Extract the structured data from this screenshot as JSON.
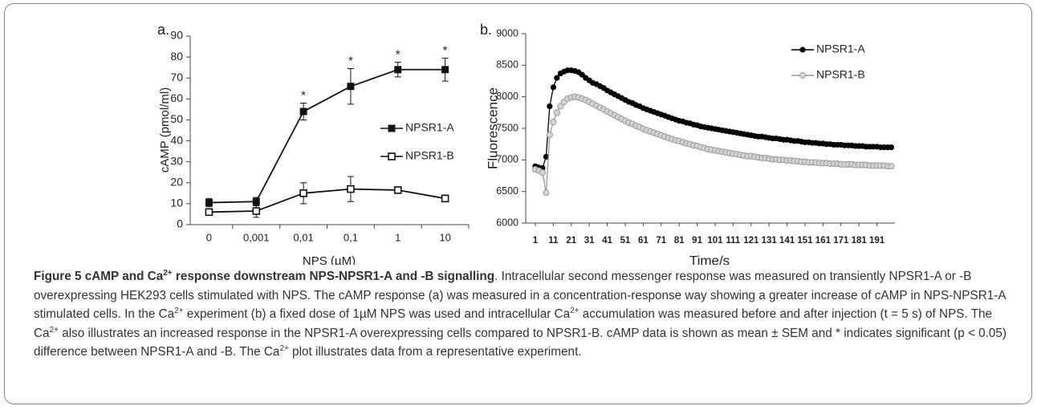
{
  "chart_data": [
    {
      "type": "line",
      "panel_label": "a.",
      "y_label": "cAMP (pmol/ml)",
      "x_label": "NPS (µM)",
      "categories": [
        "0",
        "0,001",
        "0,01",
        "0,1",
        "1",
        "10"
      ],
      "ylim": [
        0,
        90
      ],
      "yticks": [
        0,
        10,
        20,
        30,
        40,
        50,
        60,
        70,
        80,
        90
      ],
      "series": [
        {
          "name": "NPSR1-A",
          "color": "#111111",
          "marker": "square-filled",
          "values": [
            10.5,
            11,
            54,
            66,
            74,
            74
          ],
          "errors": [
            2,
            2,
            4,
            8.5,
            3.5,
            5.5
          ]
        },
        {
          "name": "NPSR1-B",
          "color": "#111111",
          "marker": "square-open",
          "values": [
            6,
            6.5,
            15,
            17,
            16.5,
            12.5
          ],
          "errors": [
            1,
            3,
            5,
            6,
            1,
            1.5
          ]
        }
      ],
      "annotations": [
        {
          "text": "*",
          "x": "0,01"
        },
        {
          "text": "*",
          "x": "0,1"
        },
        {
          "text": "*",
          "x": "1"
        },
        {
          "text": "*",
          "x": "10"
        }
      ],
      "legend": "right"
    },
    {
      "type": "line",
      "panel_label": "b.",
      "y_label": "Fluorescence",
      "x_label": "Time/s",
      "x": [
        1,
        3,
        5,
        7,
        9,
        11,
        13,
        15,
        17,
        19,
        21,
        23,
        25,
        27,
        29,
        31,
        33,
        35,
        37,
        39,
        41,
        43,
        45,
        47,
        49,
        51,
        53,
        55,
        57,
        59,
        61,
        63,
        65,
        67,
        69,
        71,
        73,
        75,
        77,
        79,
        81,
        83,
        85,
        87,
        89,
        91,
        93,
        95,
        97,
        99,
        101,
        103,
        105,
        107,
        109,
        111,
        113,
        115,
        117,
        119,
        121,
        123,
        125,
        127,
        129,
        131,
        133,
        135,
        137,
        139,
        141,
        143,
        145,
        147,
        149,
        151,
        153,
        155,
        157,
        159,
        161,
        163,
        165,
        167,
        169,
        171,
        173,
        175,
        177,
        179,
        181,
        183,
        185,
        187,
        189,
        191,
        193,
        195,
        197,
        199
      ],
      "xlim": [
        -3,
        201
      ],
      "xticks": [
        1,
        11,
        21,
        31,
        41,
        51,
        61,
        71,
        81,
        91,
        101,
        111,
        121,
        131,
        141,
        151,
        161,
        171,
        181,
        191
      ],
      "ylim": [
        6000,
        9000
      ],
      "yticks": [
        6000,
        6500,
        7000,
        7500,
        8000,
        8500,
        9000
      ],
      "series": [
        {
          "name": "NPSR1-A",
          "color": "#000000",
          "marker": "circle-filled",
          "values": [
            6900,
            6880,
            6870,
            7050,
            7850,
            8150,
            8300,
            8370,
            8400,
            8420,
            8420,
            8410,
            8390,
            8350,
            8300,
            8260,
            8220,
            8200,
            8170,
            8140,
            8100,
            8070,
            8040,
            8010,
            7980,
            7950,
            7920,
            7900,
            7870,
            7850,
            7820,
            7800,
            7780,
            7760,
            7740,
            7720,
            7700,
            7680,
            7660,
            7640,
            7620,
            7610,
            7590,
            7580,
            7560,
            7550,
            7530,
            7520,
            7510,
            7500,
            7490,
            7480,
            7470,
            7460,
            7450,
            7440,
            7430,
            7420,
            7410,
            7400,
            7390,
            7380,
            7370,
            7370,
            7360,
            7350,
            7340,
            7340,
            7330,
            7320,
            7320,
            7310,
            7300,
            7300,
            7290,
            7280,
            7280,
            7270,
            7270,
            7260,
            7260,
            7250,
            7250,
            7240,
            7240,
            7240,
            7230,
            7230,
            7230,
            7220,
            7220,
            7220,
            7210,
            7210,
            7210,
            7210,
            7200,
            7200,
            7200,
            7200
          ]
        },
        {
          "name": "NPSR1-B",
          "color": "#999999",
          "marker": "circle-light",
          "values": [
            6850,
            6830,
            6800,
            6480,
            7400,
            7600,
            7750,
            7850,
            7920,
            7970,
            7990,
            8000,
            7990,
            7970,
            7950,
            7920,
            7890,
            7860,
            7830,
            7800,
            7770,
            7740,
            7710,
            7680,
            7650,
            7620,
            7590,
            7570,
            7540,
            7520,
            7490,
            7470,
            7450,
            7430,
            7410,
            7390,
            7370,
            7350,
            7330,
            7310,
            7300,
            7280,
            7260,
            7250,
            7230,
            7220,
            7200,
            7190,
            7170,
            7160,
            7150,
            7140,
            7130,
            7120,
            7110,
            7100,
            7090,
            7080,
            7070,
            7060,
            7060,
            7050,
            7040,
            7030,
            7030,
            7020,
            7010,
            7010,
            7000,
            7000,
            6990,
            6990,
            6980,
            6980,
            6970,
            6970,
            6960,
            6960,
            6960,
            6950,
            6950,
            6950,
            6940,
            6940,
            6940,
            6930,
            6930,
            6930,
            6930,
            6920,
            6920,
            6920,
            6920,
            6910,
            6910,
            6910,
            6910,
            6910,
            6900,
            6900
          ]
        }
      ],
      "legend": "upper right"
    }
  ],
  "caption": {
    "runs": [
      {
        "text": "Figure 5 cAMP and Ca",
        "style": "bold"
      },
      {
        "text": "2+",
        "style": "bold-sup"
      },
      {
        "text": " response downstream NPS-NPSR1-A and -B signalling",
        "style": "bold"
      },
      {
        "text": ". Intracellular second messenger response was measured on transiently NPSR1-A or -B overexpressing HEK293 cells stimulated with NPS. The cAMP response (a) was measured in a concentration-response way showing a greater increase of cAMP in NPS-NPSR1-A stimulated cells. In the Ca",
        "style": "normal"
      },
      {
        "text": "2+",
        "style": "sup"
      },
      {
        "text": " experiment (b) a fixed dose of 1µM NPS was used and intracellular Ca",
        "style": "normal"
      },
      {
        "text": "2+",
        "style": "sup"
      },
      {
        "text": " accumulation was measured before and after injection (t = 5 s) of NPS. The Ca",
        "style": "normal"
      },
      {
        "text": "2+",
        "style": "sup"
      },
      {
        "text": " also illustrates an increased response in the NPSR1-A overexpressing cells compared to NPSR1-B. cAMP data is shown as mean ± SEM and * indicates significant (p < 0.05) difference between NPSR1-A and -B. The Ca",
        "style": "normal"
      },
      {
        "text": "2+",
        "style": "sup"
      },
      {
        "text": " plot illustrates data from a representative experiment.",
        "style": "normal"
      }
    ]
  }
}
